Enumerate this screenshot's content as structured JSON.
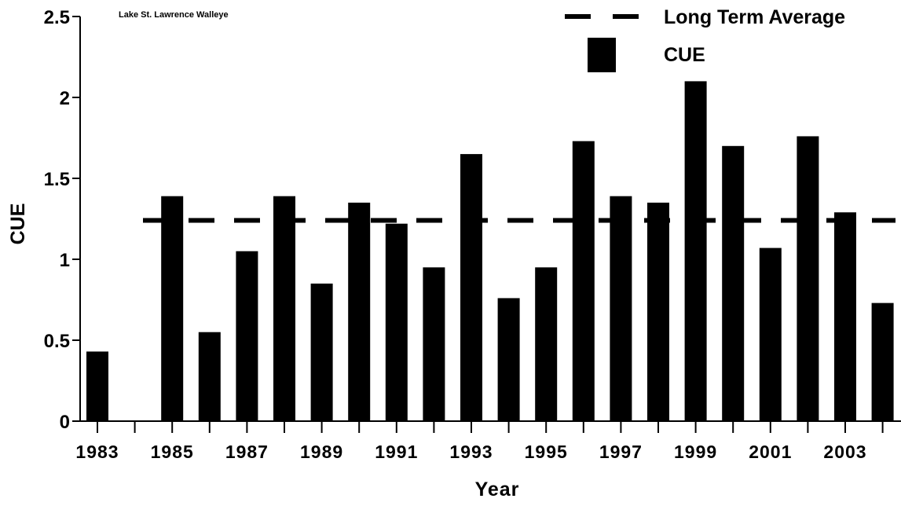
{
  "chart_data": {
    "type": "bar",
    "title": "Lake St. Lawrence Walleye",
    "xlabel": "Year",
    "ylabel": "CUE",
    "ylim": [
      0,
      2.5
    ],
    "yticks": [
      0,
      0.5,
      1,
      1.5,
      2,
      2.5
    ],
    "ytick_labels": [
      "0",
      "0.5",
      "1",
      "1.5",
      "2",
      "2.5"
    ],
    "categories": [
      1983,
      1984,
      1985,
      1986,
      1987,
      1988,
      1989,
      1990,
      1991,
      1992,
      1993,
      1994,
      1995,
      1996,
      1997,
      1998,
      1999,
      2000,
      2001,
      2002,
      2003,
      2004
    ],
    "xtick_labels": [
      "1983",
      "1985",
      "1987",
      "1989",
      "1991",
      "1993",
      "1995",
      "1997",
      "1999",
      "2001",
      "2003"
    ],
    "series": [
      {
        "name": "CUE",
        "values": [
          0.43,
          null,
          1.39,
          0.55,
          1.05,
          1.39,
          0.85,
          1.35,
          1.22,
          0.95,
          1.65,
          0.76,
          0.95,
          1.73,
          1.39,
          1.35,
          2.1,
          1.7,
          1.07,
          1.76,
          1.29,
          0.73
        ]
      }
    ],
    "reference_line": {
      "name": "Long Term Average",
      "value": 1.24,
      "style": "dashed"
    },
    "legend": {
      "placement": "top-right",
      "entries": [
        {
          "label": "Long Term Average",
          "symbol": "dashed-line"
        },
        {
          "label": "CUE",
          "symbol": "filled-bar"
        }
      ]
    },
    "colors": {
      "bars": "#000000",
      "line": "#000000",
      "background": "#ffffff"
    },
    "grid": false
  }
}
